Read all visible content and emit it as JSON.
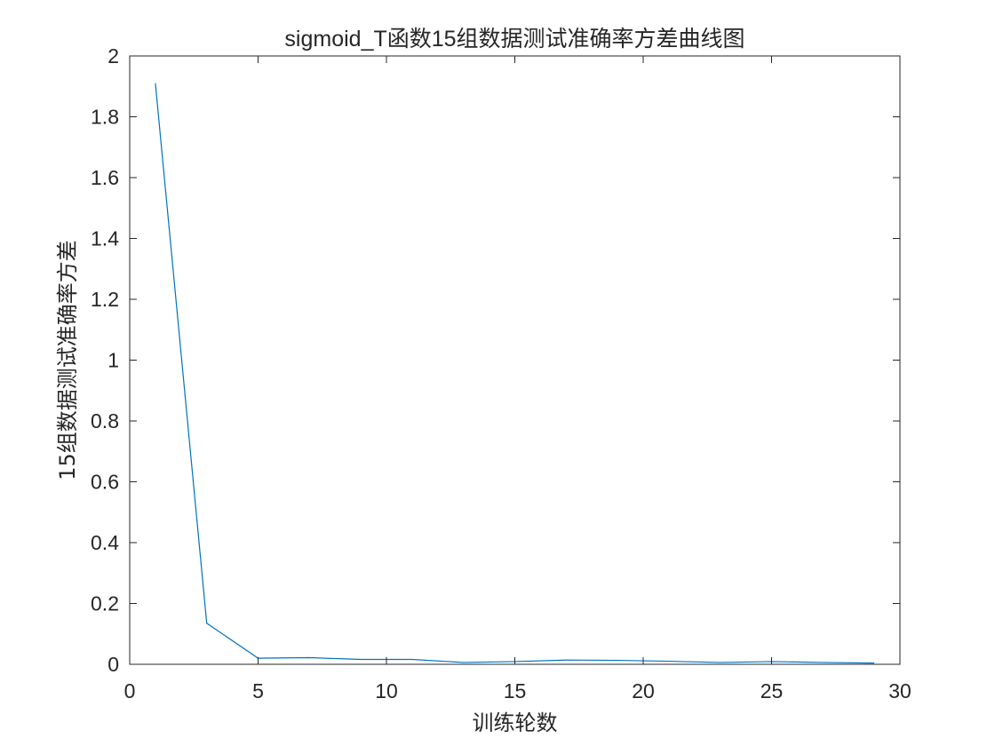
{
  "chart_data": {
    "type": "line",
    "title": "sigmoid_T函数15组数据测试准确率方差曲线图",
    "xlabel": "训练轮数",
    "ylabel": "15组数据测试准确率方差",
    "xlim": [
      0,
      30
    ],
    "ylim": [
      0,
      2
    ],
    "xticks": [
      "0",
      "5",
      "10",
      "15",
      "20",
      "25",
      "30"
    ],
    "yticks": [
      "0",
      "0.2",
      "0.4",
      "0.6",
      "0.8",
      "1",
      "1.2",
      "1.4",
      "1.6",
      "1.8",
      "2"
    ],
    "grid": false,
    "series": [
      {
        "color": "#0072BD",
        "x": [
          1,
          3,
          5,
          7,
          9,
          11,
          13,
          15,
          17,
          19,
          21,
          23,
          25,
          27,
          29
        ],
        "y": [
          1.91,
          0.135,
          0.02,
          0.022,
          0.016,
          0.016,
          0.006,
          0.009,
          0.014,
          0.013,
          0.01,
          0.006,
          0.009,
          0.006,
          0.004
        ]
      }
    ]
  }
}
